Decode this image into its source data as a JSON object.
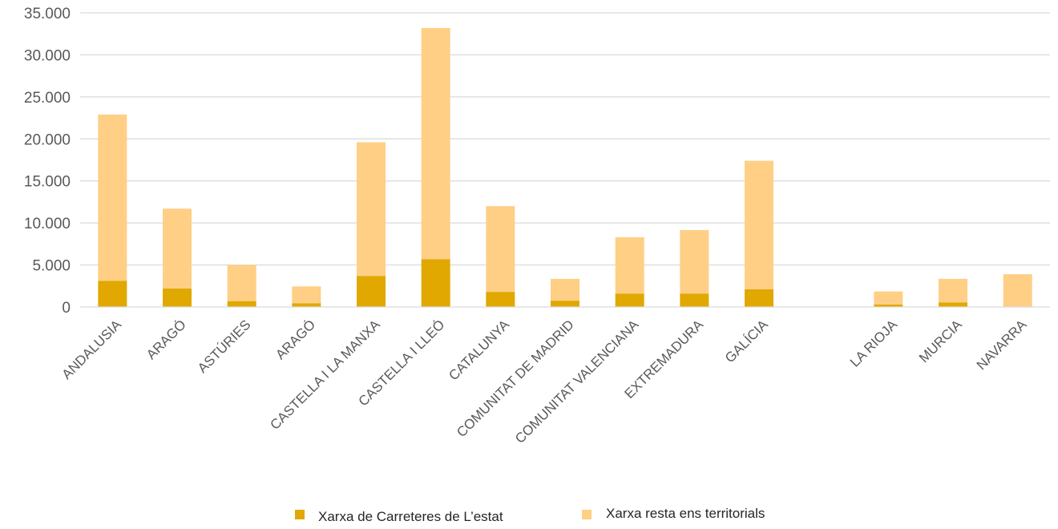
{
  "chart_data": {
    "type": "bar",
    "stacked": true,
    "title": "",
    "xlabel": "",
    "ylabel": "",
    "ylim": [
      0,
      35000
    ],
    "y_ticks": [
      "0",
      "5.000",
      "10.000",
      "15.000",
      "20.000",
      "25.000",
      "30.000",
      "35.000"
    ],
    "grid": true,
    "legend_position": "bottom",
    "categories": [
      "ANDALUSIA",
      "ARAGÓ",
      "ASTÚRIES",
      "ARAGÓ",
      "CASTELLA I LA MANXA",
      "CASTELLA I LLEÓ",
      "CATALUNYA",
      "COMUNITAT DE MADRID",
      "COMUNITAT VALENCIANA",
      "EXTREMADURA",
      "GALÍCIA",
      "",
      "LA RIOJA",
      "MURCIA",
      "NAVARRA"
    ],
    "series": [
      {
        "name": "Xarxa de Carreteres de L’estat",
        "color": "#E0A800",
        "values": [
          3100,
          2200,
          700,
          450,
          3700,
          5700,
          1800,
          750,
          1600,
          1600,
          2100,
          0,
          300,
          550,
          0
        ]
      },
      {
        "name": "Xarxa resta ens territorials",
        "color": "#FFCF86",
        "values": [
          19800,
          9500,
          4300,
          2000,
          15900,
          27500,
          10200,
          2600,
          6700,
          7550,
          15300,
          0,
          1550,
          2800,
          3900
        ]
      }
    ]
  }
}
